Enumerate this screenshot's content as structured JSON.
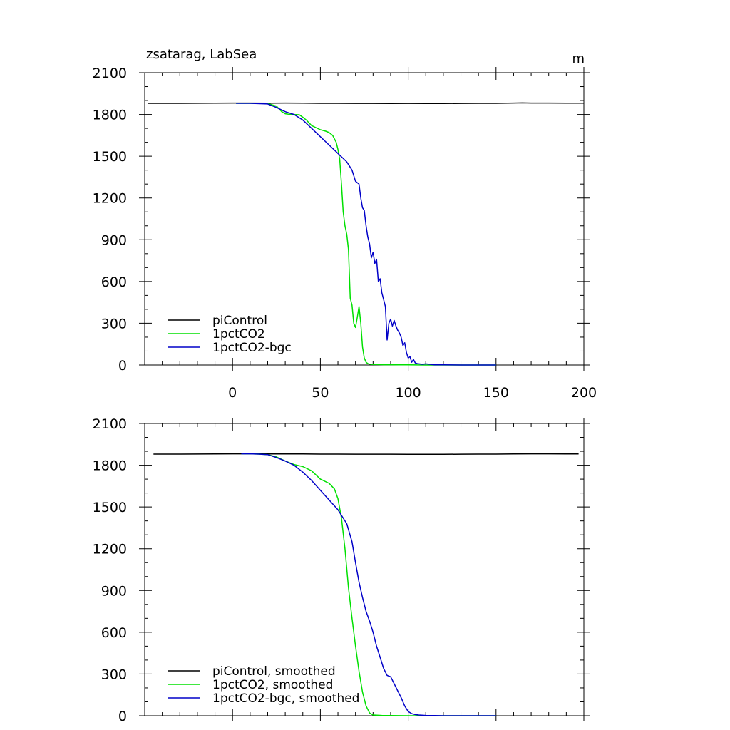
{
  "chart_data": [
    {
      "type": "line",
      "title": "zsatarag, LabSea",
      "units_label": "m",
      "xlim": [
        -50,
        200
      ],
      "ylim": [
        0,
        2100
      ],
      "xticks": [
        0,
        50,
        100,
        150,
        200
      ],
      "xtick_labels": [
        "0",
        "50",
        "100",
        "150",
        "200"
      ],
      "yticks": [
        0,
        300,
        600,
        900,
        1200,
        1500,
        1800,
        2100
      ],
      "ytick_labels": [
        "0",
        "300",
        "600",
        "900",
        "1200",
        "1500",
        "1800",
        "2100"
      ],
      "x_minor_step": 10,
      "y_minor_step": 100,
      "show_xtick_labels": true,
      "grid": false,
      "legend_position": "bottom-left",
      "series": [
        {
          "name": "piControl",
          "color": "#000000",
          "x": [
            -48,
            -30,
            -10,
            0,
            10,
            20,
            30,
            40,
            50,
            60,
            70,
            80,
            90,
            100,
            110,
            120,
            130,
            140,
            150,
            160,
            165,
            170,
            180,
            190,
            200
          ],
          "y": [
            1880,
            1880,
            1881,
            1882,
            1882,
            1881,
            1882,
            1881,
            1880,
            1880,
            1879,
            1879,
            1878,
            1879,
            1878,
            1878,
            1879,
            1880,
            1880,
            1882,
            1883,
            1882,
            1882,
            1881,
            1881
          ]
        },
        {
          "name": "1pctCO2",
          "color": "#00e000",
          "x": [
            2,
            10,
            20,
            25,
            28,
            30,
            33,
            35,
            38,
            40,
            42,
            45,
            50,
            53,
            55,
            57,
            59,
            60,
            61,
            62,
            63,
            64,
            65,
            66,
            67,
            68,
            69,
            70,
            71,
            72,
            73,
            74,
            75,
            76,
            77,
            78,
            80,
            83,
            86,
            90,
            95,
            100,
            110,
            120,
            130,
            140,
            150
          ],
          "y": [
            1880,
            1880,
            1878,
            1860,
            1820,
            1805,
            1800,
            1800,
            1798,
            1780,
            1760,
            1720,
            1690,
            1680,
            1670,
            1650,
            1600,
            1550,
            1480,
            1300,
            1100,
            1000,
            940,
            830,
            480,
            430,
            300,
            270,
            340,
            420,
            300,
            130,
            50,
            20,
            10,
            6,
            4,
            3,
            2,
            2,
            1,
            1,
            0,
            0,
            0,
            0,
            0
          ]
        },
        {
          "name": "1pctCO2-bgc",
          "color": "#0000c8",
          "x": [
            2,
            10,
            20,
            25,
            30,
            35,
            40,
            45,
            50,
            55,
            60,
            65,
            68,
            70,
            72,
            73,
            74,
            75,
            76,
            77,
            78,
            79,
            80,
            81,
            82,
            83,
            84,
            85,
            86,
            87,
            88,
            89,
            90,
            91,
            92,
            93,
            94,
            95,
            96,
            97,
            98,
            99,
            100,
            101,
            102,
            103,
            104,
            105,
            108,
            110,
            115,
            120,
            130,
            140,
            150
          ],
          "y": [
            1880,
            1880,
            1875,
            1850,
            1820,
            1800,
            1760,
            1700,
            1640,
            1580,
            1520,
            1460,
            1400,
            1320,
            1300,
            1200,
            1130,
            1110,
            1000,
            920,
            870,
            770,
            810,
            730,
            760,
            600,
            620,
            520,
            470,
            420,
            180,
            300,
            330,
            280,
            320,
            280,
            250,
            230,
            200,
            140,
            160,
            90,
            50,
            60,
            20,
            40,
            15,
            10,
            5,
            8,
            1,
            1,
            0,
            0,
            0
          ]
        }
      ]
    },
    {
      "type": "line",
      "title": "",
      "units_label": "",
      "xlim": [
        -50,
        200
      ],
      "ylim": [
        0,
        2100
      ],
      "xticks": [
        0,
        50,
        100,
        150,
        200
      ],
      "xtick_labels": [],
      "yticks": [
        0,
        300,
        600,
        900,
        1200,
        1500,
        1800,
        2100
      ],
      "ytick_labels": [
        "0",
        "300",
        "600",
        "900",
        "1200",
        "1500",
        "1800",
        "2100"
      ],
      "x_minor_step": 10,
      "y_minor_step": 100,
      "show_xtick_labels": false,
      "grid": false,
      "legend_position": "bottom-left",
      "series": [
        {
          "name": "piControl, smoothed",
          "color": "#000000",
          "x": [
            -45,
            -30,
            -10,
            0,
            10,
            20,
            30,
            40,
            50,
            60,
            70,
            80,
            90,
            100,
            110,
            120,
            130,
            140,
            150,
            160,
            170,
            180,
            190,
            197
          ],
          "y": [
            1880,
            1880,
            1881,
            1882,
            1882,
            1881,
            1881,
            1881,
            1880,
            1880,
            1879,
            1879,
            1879,
            1878,
            1878,
            1878,
            1879,
            1880,
            1880,
            1881,
            1882,
            1882,
            1881,
            1881
          ]
        },
        {
          "name": "1pctCO2, smoothed",
          "color": "#00e000",
          "x": [
            5,
            10,
            15,
            20,
            25,
            30,
            35,
            40,
            45,
            50,
            55,
            58,
            60,
            62,
            64,
            66,
            68,
            70,
            72,
            74,
            76,
            78,
            80,
            85,
            90,
            100,
            110,
            120,
            130,
            140,
            150
          ],
          "y": [
            1882,
            1882,
            1880,
            1876,
            1860,
            1830,
            1805,
            1790,
            1760,
            1700,
            1670,
            1630,
            1560,
            1420,
            1200,
            920,
            700,
            500,
            320,
            170,
            70,
            20,
            5,
            2,
            1,
            0,
            0,
            0,
            0,
            0,
            0
          ]
        },
        {
          "name": "1pctCO2-bgc, smoothed",
          "color": "#0000c8",
          "x": [
            5,
            10,
            15,
            20,
            25,
            30,
            35,
            40,
            45,
            50,
            55,
            60,
            65,
            68,
            70,
            72,
            74,
            76,
            78,
            80,
            82,
            84,
            86,
            88,
            90,
            92,
            94,
            96,
            98,
            100,
            102,
            104,
            106,
            110,
            115,
            120,
            130,
            140,
            150
          ],
          "y": [
            1882,
            1882,
            1880,
            1876,
            1855,
            1830,
            1800,
            1750,
            1690,
            1620,
            1550,
            1480,
            1380,
            1250,
            1100,
            960,
            850,
            750,
            680,
            600,
            500,
            420,
            340,
            290,
            280,
            230,
            180,
            130,
            70,
            30,
            15,
            8,
            5,
            2,
            1,
            0,
            0,
            0,
            0
          ]
        }
      ]
    }
  ]
}
